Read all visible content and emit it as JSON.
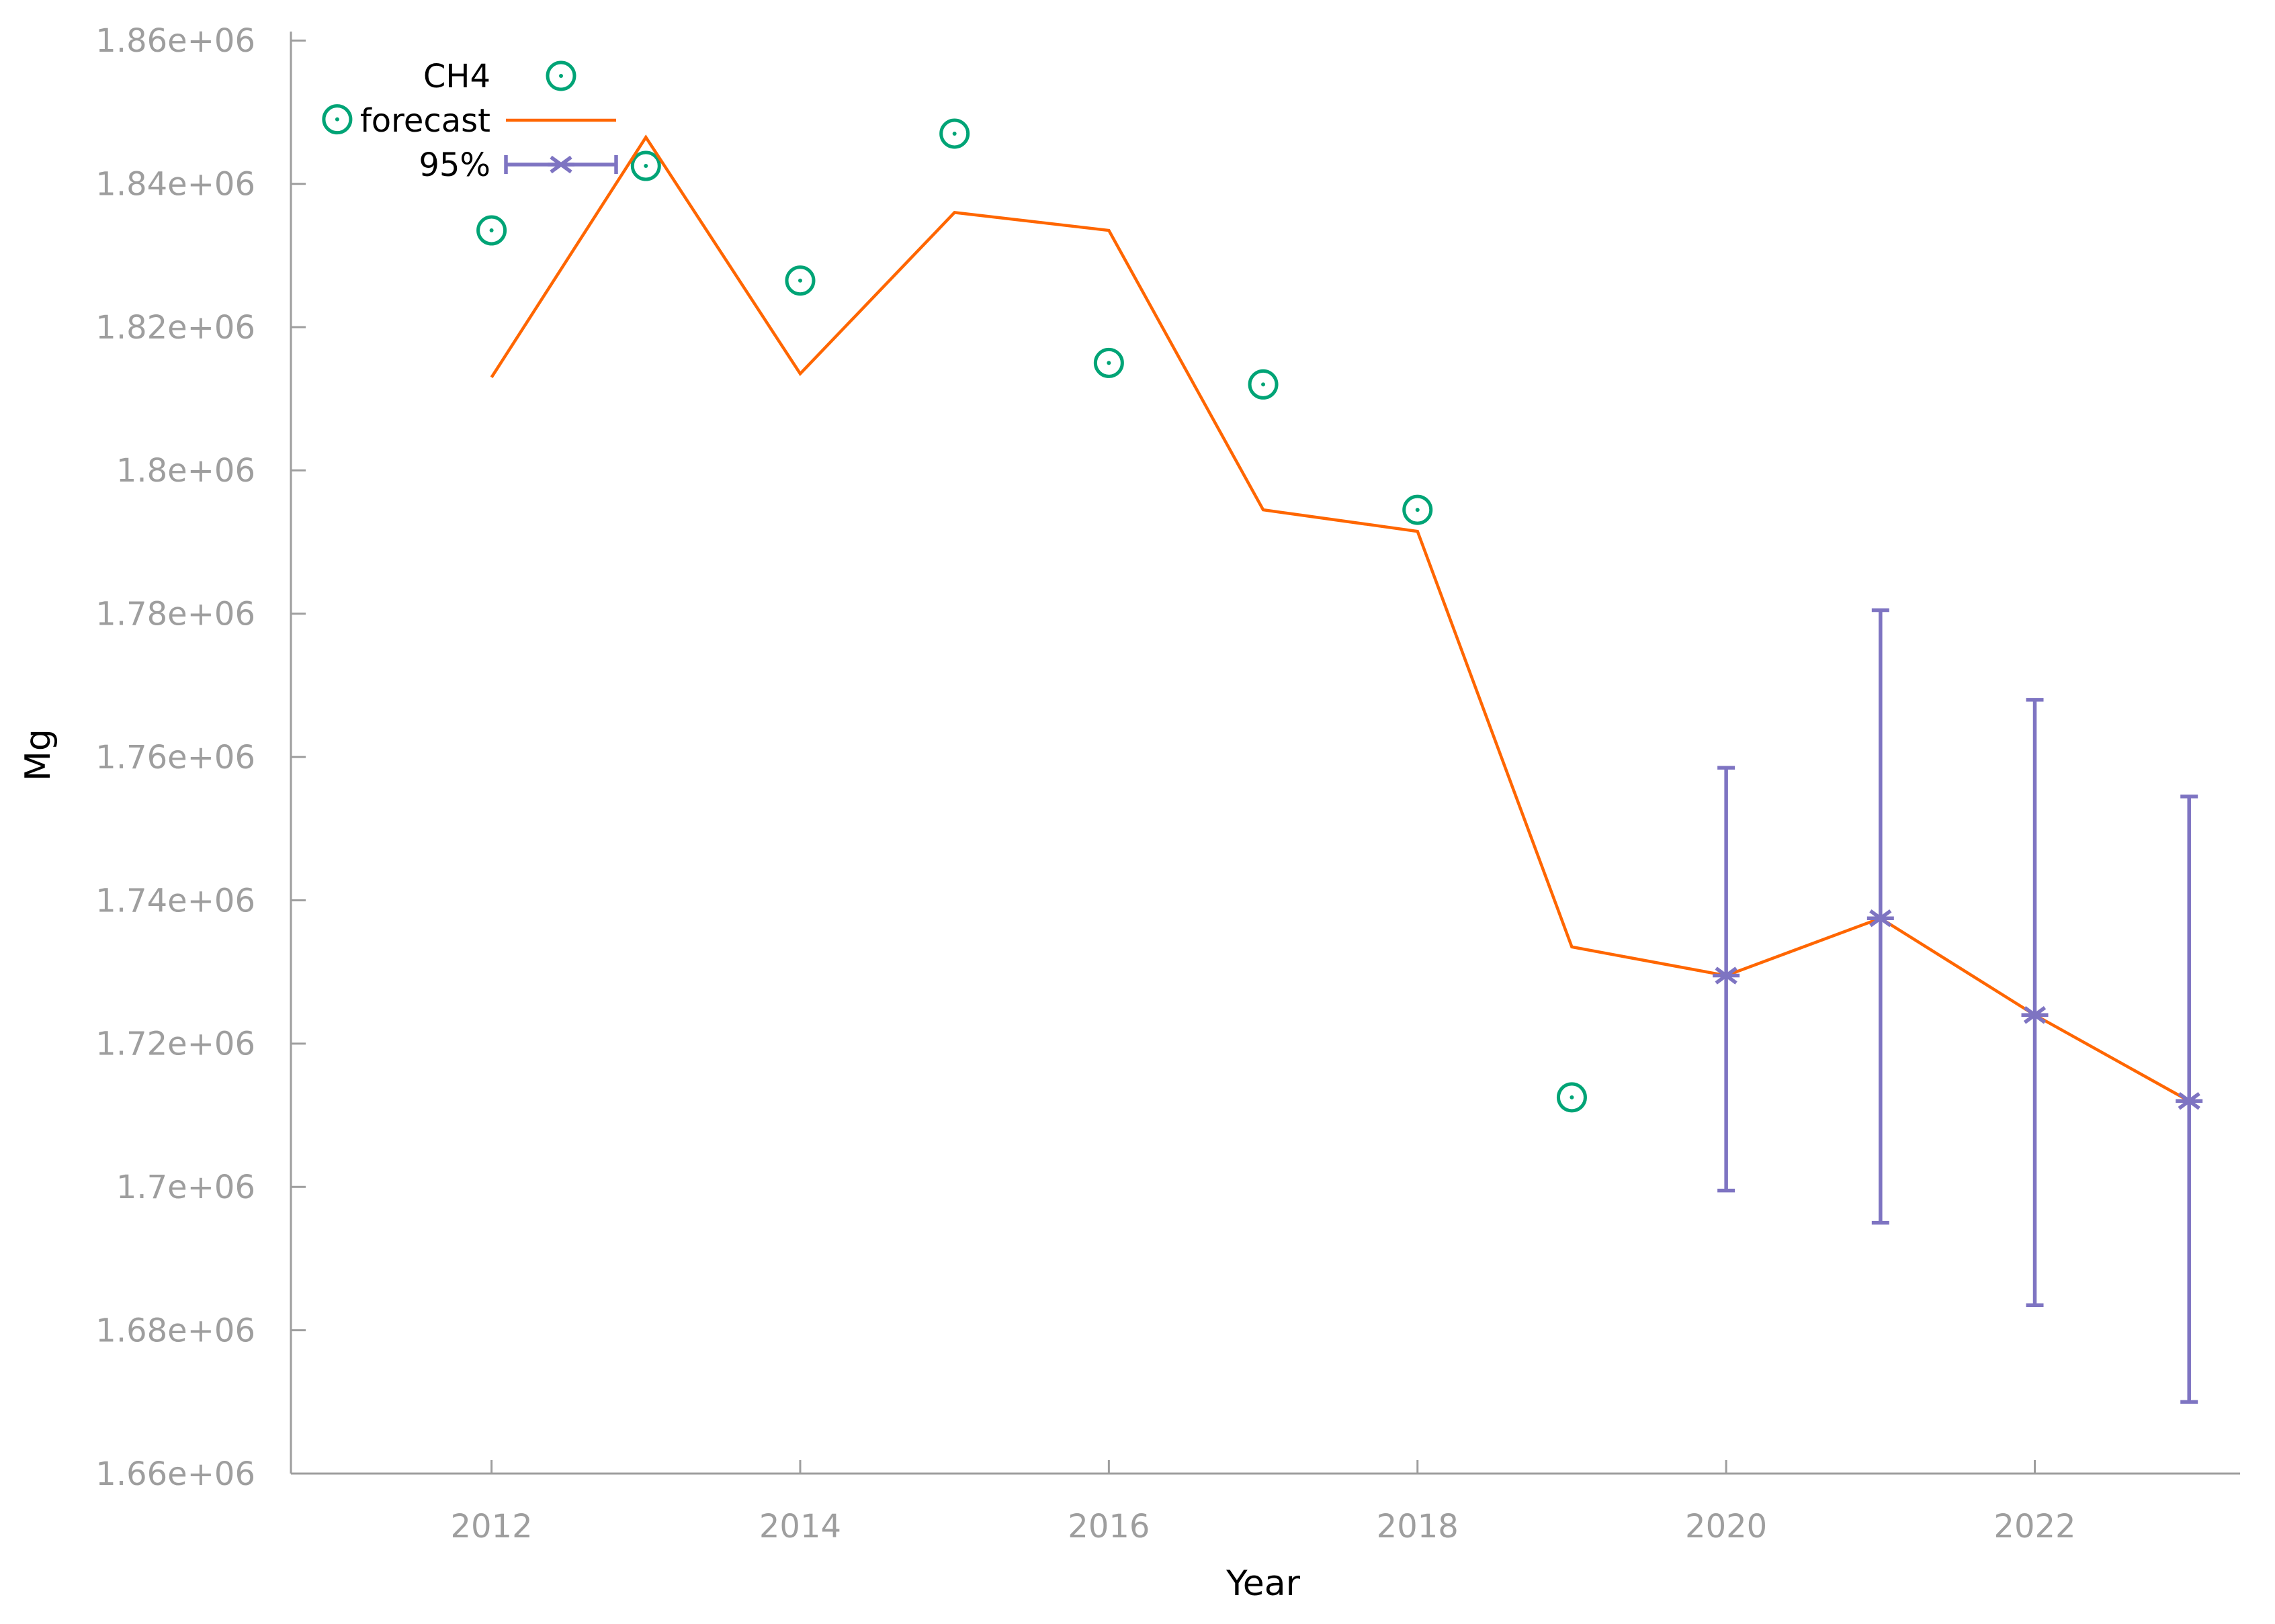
{
  "page": {
    "background": "#FFFFFF"
  },
  "chart_data": {
    "type": "line",
    "title": "",
    "xlabel": "Year",
    "ylabel": "Mg",
    "xlim": [
      2010.7,
      2023.33
    ],
    "ylim": [
      1660000,
      1861250
    ],
    "grid": false,
    "legend": {
      "position": "top-left-inside",
      "entries": [
        "CH4",
        "forecast",
        "95%"
      ]
    },
    "x_ticks": {
      "values": [
        2012,
        2014,
        2016,
        2018,
        2020,
        2022
      ],
      "labels": [
        "2012",
        "2014",
        "2016",
        "2018",
        "2020",
        "2022"
      ]
    },
    "y_ticks": {
      "values": [
        1860000,
        1840000,
        1820000,
        1800000,
        1780000,
        1760000,
        1740000,
        1720000,
        1700000,
        1680000,
        1660000
      ],
      "labels": [
        "1.86e+06",
        "1.84e+06",
        "1.82e+06",
        "1.8e+06",
        "1.78e+06",
        "1.76e+06",
        "1.74e+06",
        "1.72e+06",
        "1.7e+06",
        "1.68e+06",
        "1.66e+06"
      ]
    },
    "series": [
      {
        "name": "CH4",
        "type": "scatter",
        "marker": "open-circle-dot",
        "color": "#00A476",
        "x": [
          2011,
          2012,
          2013,
          2014,
          2015,
          2016,
          2017,
          2018,
          2019
        ],
        "y": [
          1849000,
          1833500,
          1842500,
          1826500,
          1847000,
          1815000,
          1812000,
          1794500,
          1712500
        ]
      },
      {
        "name": "forecast",
        "type": "line",
        "marker": "none",
        "color": "#FF6600",
        "x": [
          2012,
          2013,
          2014,
          2015,
          2016,
          2017,
          2018,
          2019,
          2020,
          2021,
          2022,
          2023
        ],
        "y": [
          1813000,
          1846500,
          1813500,
          1836000,
          1833500,
          1794500,
          1791500,
          1733500,
          1729500,
          1737500,
          1724000,
          1712000
        ]
      },
      {
        "name": "95%",
        "type": "errorbar",
        "marker": "asterisk",
        "color": "#7E74C2",
        "x": [
          2020,
          2021,
          2022,
          2023
        ],
        "y": [
          1729500,
          1737500,
          1724000,
          1712000
        ],
        "y_low": [
          1699500,
          1695000,
          1683500,
          1670000
        ],
        "y_high": [
          1758500,
          1780500,
          1768000,
          1754500
        ]
      }
    ],
    "axis_color": "#9E9E9E",
    "tick_label_color": "#9E9E9E",
    "text_color": "#000000"
  }
}
